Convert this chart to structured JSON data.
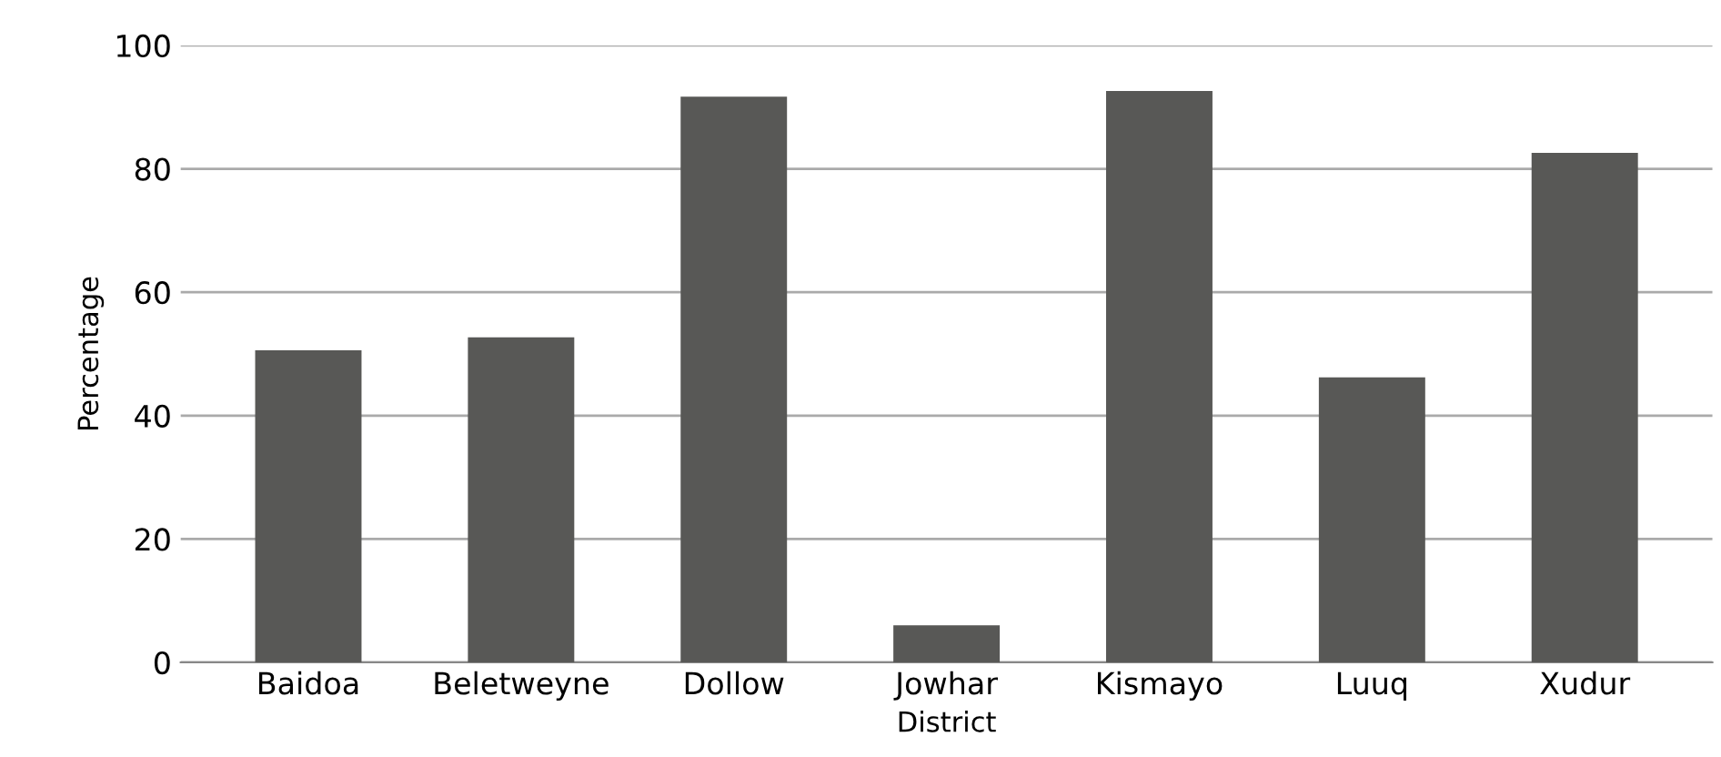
{
  "chart_data": {
    "type": "bar",
    "xlabel": "District",
    "ylabel": "Percentage",
    "categories": [
      "Baidoa",
      "Beletweyne",
      "Dollow",
      "Jowhar",
      "Kismayo",
      "Luuq",
      "Xudur"
    ],
    "values": [
      50.6,
      52.7,
      91.7,
      6.0,
      92.6,
      46.2,
      82.6
    ],
    "color": "#585856",
    "ylim": [
      0,
      100
    ],
    "yticks": [
      0,
      20,
      40,
      60,
      80,
      100
    ],
    "grid": "y"
  }
}
